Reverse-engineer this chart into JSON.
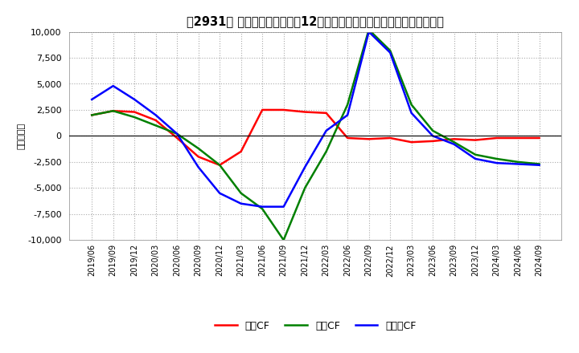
{
  "title": "【2931】 キャッシュフローの12か月移動合計の対前年同期増減額の推移",
  "ylabel": "（百万円）",
  "ylim": [
    -10000,
    10000
  ],
  "yticks": [
    -10000,
    -7500,
    -5000,
    -2500,
    0,
    2500,
    5000,
    7500,
    10000
  ],
  "x_labels": [
    "2019/06",
    "2019/09",
    "2019/12",
    "2020/03",
    "2020/06",
    "2020/09",
    "2020/12",
    "2021/03",
    "2021/06",
    "2021/09",
    "2021/12",
    "2022/03",
    "2022/06",
    "2022/09",
    "2022/12",
    "2023/03",
    "2023/06",
    "2023/09",
    "2023/12",
    "2024/03",
    "2024/06",
    "2024/09"
  ],
  "operating_cf": [
    2000,
    2400,
    2300,
    1500,
    -200,
    -2000,
    -2800,
    -1500,
    2500,
    2500,
    2300,
    2200,
    -200,
    -300,
    -200,
    -600,
    -500,
    -300,
    -400,
    -200,
    -200,
    -200
  ],
  "investing_cf": [
    2000,
    2400,
    1800,
    1000,
    200,
    -1200,
    -2800,
    -5500,
    -7000,
    -10000,
    -5000,
    -1500,
    3000,
    10200,
    8200,
    3000,
    500,
    -600,
    -1800,
    -2200,
    -2500,
    -2700
  ],
  "free_cf": [
    3500,
    4800,
    3500,
    2000,
    200,
    -3000,
    -5500,
    -6500,
    -6800,
    -6800,
    -3000,
    500,
    2000,
    10000,
    8000,
    2200,
    0,
    -800,
    -2200,
    -2600,
    -2700,
    -2800
  ],
  "operating_color": "#ff0000",
  "investing_color": "#008000",
  "free_color": "#0000ff",
  "background_color": "#ffffff",
  "grid_color": "#aaaaaa",
  "legend_labels": [
    "営業CF",
    "投資CF",
    "フリーCF"
  ]
}
